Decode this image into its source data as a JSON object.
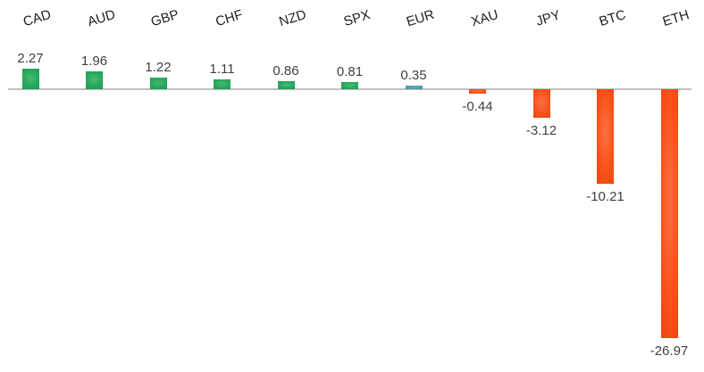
{
  "chart_data": {
    "type": "bar",
    "title": "",
    "xlabel": "",
    "ylabel": "",
    "categories": [
      "CAD",
      "AUD",
      "GBP",
      "CHF",
      "NZD",
      "SPX",
      "EUR",
      "XAU",
      "JPY",
      "BTC",
      "ETH"
    ],
    "values": [
      2.27,
      1.96,
      1.22,
      1.11,
      0.86,
      0.81,
      0.35,
      -0.44,
      -3.12,
      -10.21,
      -26.97
    ],
    "data_labels": [
      "2.27",
      "1.96",
      "1.22",
      "1.11",
      "0.86",
      "0.81",
      "0.35",
      "-0.44",
      "-3.12",
      "-10.21",
      "-26.97"
    ],
    "point_colors": [
      "#18A351",
      "#18A351",
      "#18A351",
      "#18A351",
      "#18A351",
      "#18A351",
      "#3F96A6",
      "#F8490D",
      "#F8490D",
      "#F8490D",
      "#F8490D"
    ],
    "colors": {
      "positive": "#18A351",
      "negative": "#F8490D",
      "eur_highlight": "#3F96A6",
      "axis_line": "#BFBFBF",
      "value_label_text": "#404040",
      "category_label_text": "#1F1F1F",
      "background": "#FFFFFF"
    },
    "ylim": [
      -28,
      3
    ],
    "grid": false,
    "legend": "none",
    "data_label_position": "outside-end",
    "category_label_position": "top-angled"
  }
}
